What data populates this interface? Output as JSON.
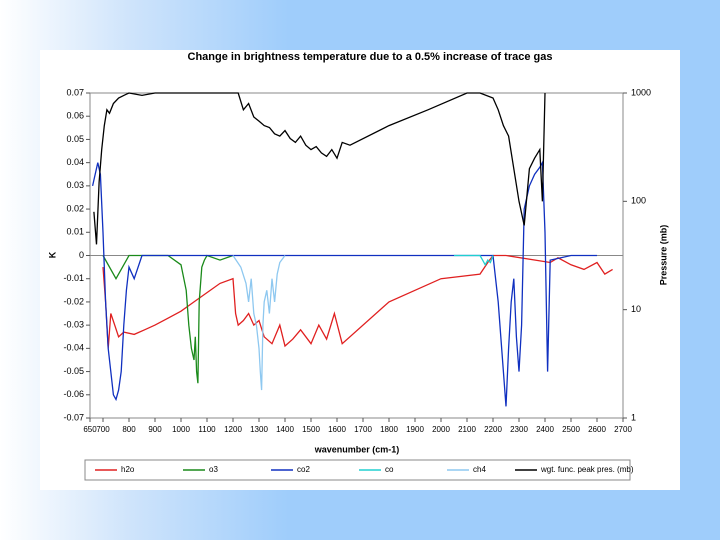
{
  "chart_data": {
    "type": "line",
    "title": "Change in brightness temperature due to a 0.5% increase of trace gas",
    "x_label": "wavenumber (cm-1)",
    "y_label": "K",
    "y2_label": "Pressure (mb)",
    "xlim": [
      650,
      2700
    ],
    "xticks": [
      650,
      700,
      800,
      900,
      1000,
      1100,
      1200,
      1300,
      1400,
      1500,
      1600,
      1700,
      1800,
      1900,
      2000,
      2100,
      2200,
      2300,
      2400,
      2500,
      2600,
      2700
    ],
    "ylim": [
      -0.07,
      0.07
    ],
    "yticks": [
      -0.07,
      -0.06,
      -0.05,
      -0.04,
      -0.03,
      -0.02,
      -0.01,
      0,
      0.01,
      0.02,
      0.03,
      0.04,
      0.05,
      0.06,
      0.07
    ],
    "y2lim": [
      1,
      1000
    ],
    "y2ticks": [
      1,
      10,
      100,
      1000
    ],
    "y2_log": true,
    "legend": "bottom",
    "series": [
      {
        "name": "h2o",
        "color": "#e02020",
        "x": [
          700,
          710,
          720,
          730,
          745,
          760,
          780,
          820,
          860,
          900,
          950,
          1000,
          1050,
          1100,
          1150,
          1200,
          1210,
          1220,
          1240,
          1260,
          1280,
          1300,
          1320,
          1350,
          1380,
          1400,
          1430,
          1460,
          1500,
          1530,
          1560,
          1590,
          1620,
          1800,
          2000,
          2150,
          2180,
          2200,
          2250,
          2420,
          2450,
          2500,
          2550,
          2600,
          2630,
          2660
        ],
        "values": [
          -0.005,
          -0.02,
          -0.04,
          -0.025,
          -0.03,
          -0.035,
          -0.033,
          -0.034,
          -0.032,
          -0.03,
          -0.027,
          -0.024,
          -0.02,
          -0.016,
          -0.012,
          -0.01,
          -0.025,
          -0.03,
          -0.028,
          -0.025,
          -0.03,
          -0.028,
          -0.035,
          -0.038,
          -0.03,
          -0.039,
          -0.036,
          -0.032,
          -0.038,
          -0.03,
          -0.036,
          -0.025,
          -0.038,
          -0.02,
          -0.01,
          -0.008,
          -0.003,
          0,
          0,
          -0.003,
          -0.001,
          -0.004,
          -0.006,
          -0.003,
          -0.008,
          -0.006
        ]
      },
      {
        "name": "o3",
        "color": "#1a8a1a",
        "x": [
          700,
          750,
          800,
          950,
          1000,
          1020,
          1030,
          1040,
          1050,
          1055,
          1060,
          1065,
          1070,
          1080,
          1090,
          1100,
          1150,
          1200
        ],
        "values": [
          0,
          -0.01,
          0,
          0,
          -0.004,
          -0.015,
          -0.03,
          -0.04,
          -0.045,
          -0.035,
          -0.05,
          -0.055,
          -0.02,
          -0.005,
          -0.002,
          0,
          -0.002,
          0
        ]
      },
      {
        "name": "co2",
        "color": "#1030c0",
        "x": [
          660,
          680,
          690,
          700,
          710,
          720,
          730,
          740,
          750,
          760,
          770,
          780,
          790,
          800,
          820,
          850,
          900,
          1000,
          1100,
          1200,
          1600,
          2000,
          2200,
          2220,
          2240,
          2250,
          2260,
          2270,
          2280,
          2290,
          2300,
          2310,
          2320,
          2340,
          2360,
          2380,
          2390,
          2400,
          2410,
          2420,
          2500,
          2600
        ],
        "values": [
          0.03,
          0.04,
          0.035,
          0.01,
          -0.02,
          -0.04,
          -0.05,
          -0.06,
          -0.062,
          -0.058,
          -0.05,
          -0.03,
          -0.015,
          -0.005,
          -0.01,
          0,
          0,
          0,
          0,
          0,
          0,
          0,
          0,
          -0.02,
          -0.05,
          -0.065,
          -0.04,
          -0.02,
          -0.01,
          -0.035,
          -0.05,
          -0.03,
          0.02,
          0.03,
          0.035,
          0.038,
          0.04,
          0.01,
          -0.05,
          -0.002,
          0,
          0
        ]
      },
      {
        "name": "co",
        "color": "#20d0d0",
        "x": [
          2050,
          2100,
          2150,
          2160,
          2170,
          2180,
          2190,
          2200
        ],
        "values": [
          0,
          0,
          0,
          -0.002,
          -0.004,
          -0.002,
          -0.003,
          0
        ]
      },
      {
        "name": "ch4",
        "color": "#8ec8f0",
        "x": [
          1200,
          1230,
          1250,
          1260,
          1270,
          1280,
          1290,
          1300,
          1305,
          1310,
          1315,
          1320,
          1330,
          1340,
          1350,
          1360,
          1370,
          1380,
          1400
        ],
        "values": [
          0,
          -0.005,
          -0.012,
          -0.02,
          -0.01,
          -0.025,
          -0.03,
          -0.04,
          -0.05,
          -0.058,
          -0.03,
          -0.02,
          -0.015,
          -0.025,
          -0.01,
          -0.02,
          -0.008,
          -0.003,
          0
        ]
      },
      {
        "name": "wgt. func. peak pres. (mb)",
        "color": "#000000",
        "axis": "y2",
        "x": [
          665,
          675,
          685,
          695,
          705,
          715,
          725,
          740,
          760,
          780,
          800,
          850,
          900,
          1000,
          1100,
          1200,
          1220,
          1240,
          1260,
          1280,
          1300,
          1320,
          1340,
          1360,
          1380,
          1400,
          1420,
          1440,
          1460,
          1480,
          1500,
          1520,
          1540,
          1560,
          1580,
          1600,
          1620,
          1650,
          1800,
          1950,
          2100,
          2150,
          2200,
          2220,
          2240,
          2260,
          2280,
          2300,
          2320,
          2340,
          2360,
          2380,
          2390,
          2400
        ],
        "values": [
          80,
          40,
          150,
          300,
          500,
          700,
          650,
          800,
          900,
          950,
          1000,
          950,
          1000,
          1000,
          1000,
          1000,
          1000,
          700,
          800,
          600,
          550,
          500,
          480,
          420,
          400,
          450,
          380,
          350,
          400,
          330,
          300,
          320,
          280,
          260,
          300,
          250,
          350,
          330,
          500,
          700,
          1000,
          1000,
          900,
          700,
          500,
          400,
          200,
          100,
          60,
          200,
          250,
          300,
          100,
          1000
        ]
      }
    ]
  }
}
